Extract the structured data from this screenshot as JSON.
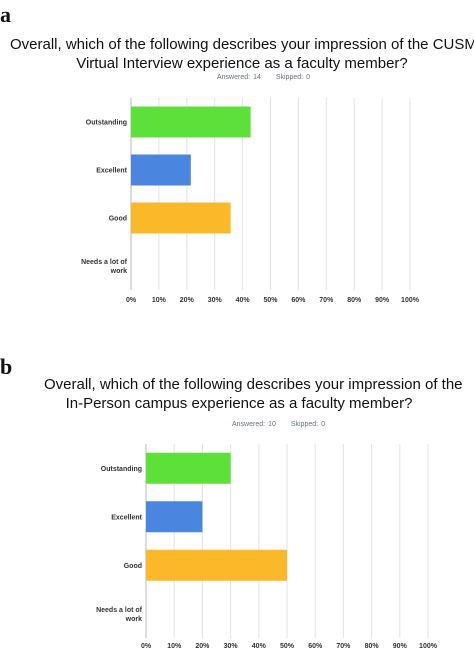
{
  "chart_data": [
    {
      "type": "bar",
      "orientation": "horizontal",
      "panel_label": "a",
      "title_lines": [
        "Overall, which of the following describes your impression of the CUSM",
        "Virtual Interview experience as a faculty member?"
      ],
      "answered_label": "Answered:",
      "answered_value": "14",
      "skipped_label": "Skipped:",
      "skipped_value": "0",
      "categories": [
        "Outstanding",
        "Excellent",
        "Good",
        "Needs a lot of work"
      ],
      "category_lines": [
        [
          "Outstanding"
        ],
        [
          "Excellent"
        ],
        [
          "Good"
        ],
        [
          "Needs a lot of",
          "work"
        ]
      ],
      "values": [
        42.86,
        21.43,
        35.71,
        0
      ],
      "colors": [
        "#5ee03a",
        "#4a86e0",
        "#fbb92a",
        "#d9d9d9"
      ],
      "xlim": [
        0,
        100
      ],
      "xticks": [
        "0%",
        "10%",
        "20%",
        "30%",
        "40%",
        "50%",
        "60%",
        "70%",
        "80%",
        "90%",
        "100%"
      ],
      "grid": true
    },
    {
      "type": "bar",
      "orientation": "horizontal",
      "panel_label": "b",
      "title_lines": [
        "Overall, which of the following describes your impression of the",
        "In-Person campus experience as a faculty member?"
      ],
      "answered_label": "Answered:",
      "answered_value": "10",
      "skipped_label": "Skipped:",
      "skipped_value": "0",
      "categories": [
        "Outstanding",
        "Excellent",
        "Good",
        "Needs a lot of work"
      ],
      "category_lines": [
        [
          "Outstanding"
        ],
        [
          "Excellent"
        ],
        [
          "Good"
        ],
        [
          "Needs a lot of",
          "work"
        ]
      ],
      "values": [
        30,
        20,
        50,
        0
      ],
      "colors": [
        "#5ee03a",
        "#4a86e0",
        "#fbb92a",
        "#d9d9d9"
      ],
      "xlim": [
        0,
        100
      ],
      "xticks": [
        "0%",
        "10%",
        "20%",
        "30%",
        "40%",
        "50%",
        "60%",
        "70%",
        "80%",
        "90%",
        "100%"
      ],
      "grid": true
    }
  ]
}
